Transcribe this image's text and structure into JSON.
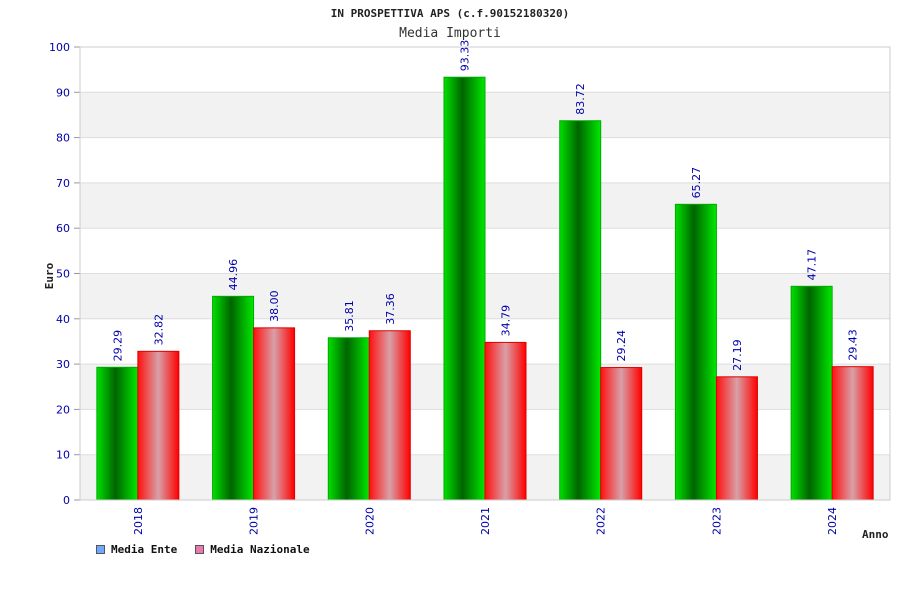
{
  "chart_data": {
    "type": "bar",
    "title": "IN PROSPETTIVA APS (c.f.90152180320)",
    "subtitle": "Media Importi",
    "xlabel": "Anno",
    "ylabel": "Euro",
    "ylim": [
      0,
      100
    ],
    "yticks": [
      0,
      10,
      20,
      30,
      40,
      50,
      60,
      70,
      80,
      90,
      100
    ],
    "categories": [
      "2018",
      "2019",
      "2020",
      "2021",
      "2022",
      "2023",
      "2024"
    ],
    "series": [
      {
        "name": "Media Ente",
        "values": [
          29.29,
          44.96,
          35.81,
          93.33,
          83.72,
          65.27,
          47.17
        ],
        "color": "#00cc00",
        "legend_color": "#6fa8ff"
      },
      {
        "name": "Media Nazionale",
        "values": [
          32.82,
          38.0,
          37.36,
          34.79,
          29.24,
          27.19,
          29.43
        ],
        "color": "#ff0000",
        "legend_color": "#e87ab0"
      }
    ],
    "value_labels": [
      [
        "29.29",
        "44.96",
        "35.81",
        "93.33",
        "83.72",
        "65.27",
        "47.17"
      ],
      [
        "32.82",
        "38.00",
        "37.36",
        "34.79",
        "29.24",
        "27.19",
        "29.43"
      ]
    ],
    "grid": true,
    "legend_position": "bottom-left"
  }
}
